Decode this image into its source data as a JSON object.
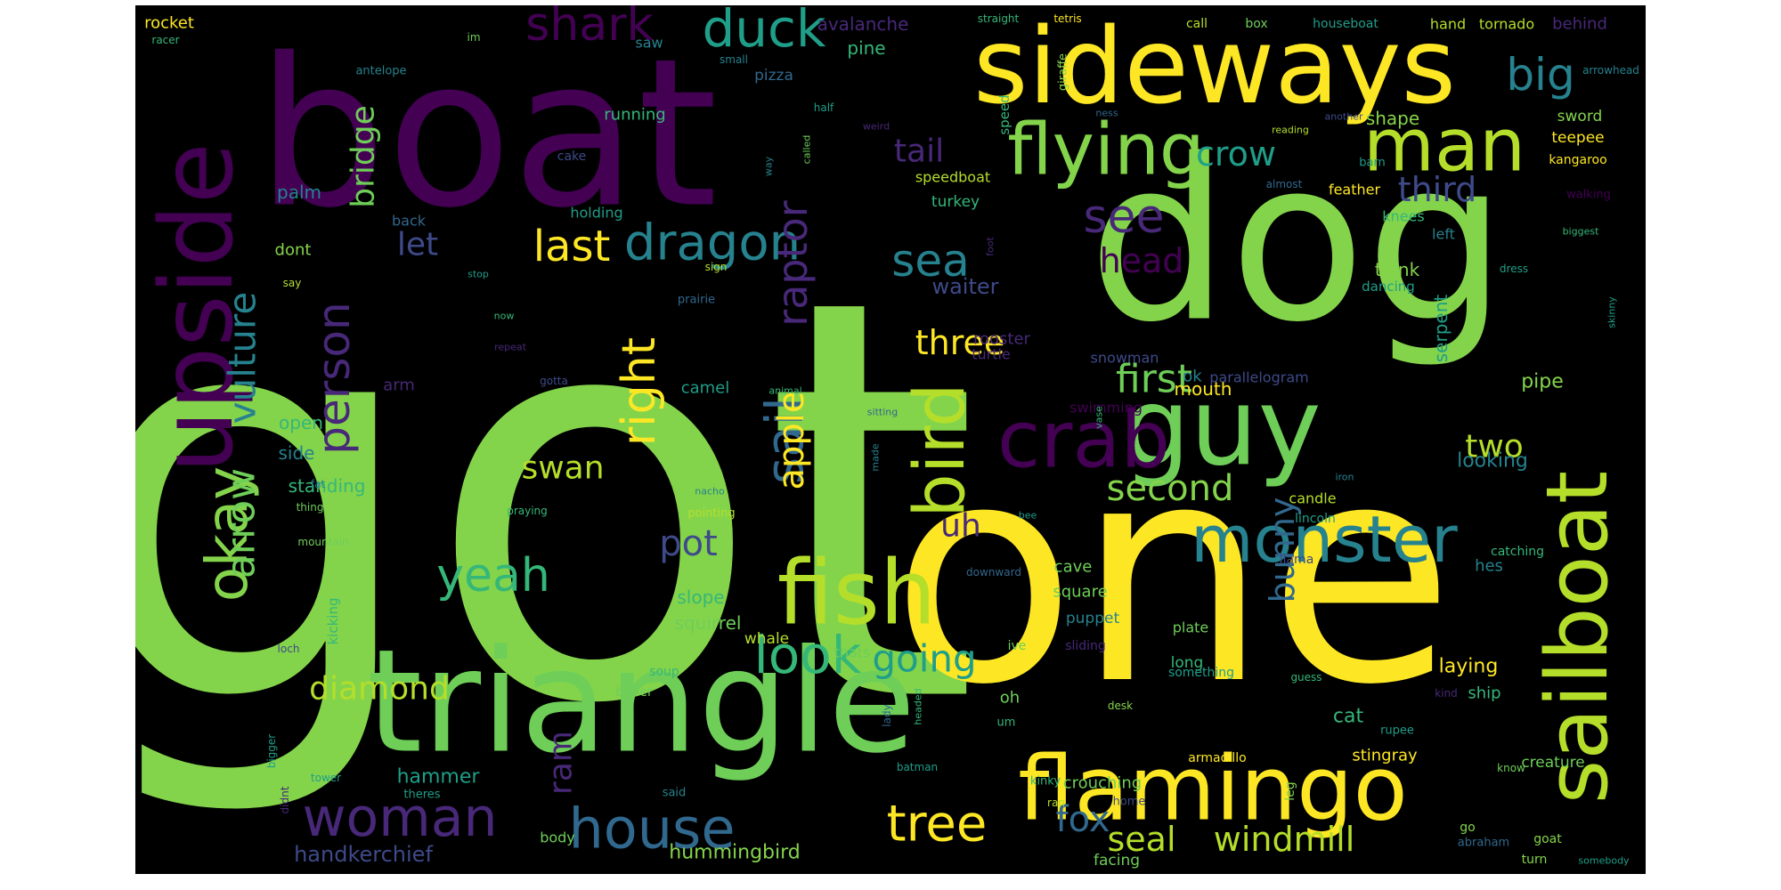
{
  "palette": {
    "background": "#000000",
    "frame": "#ffffff",
    "colors": [
      "#440154",
      "#482878",
      "#3e4a89",
      "#31688e",
      "#26828e",
      "#1f9e89",
      "#35b779",
      "#6ece58",
      "#84d44b",
      "#b5de2b",
      "#fde725"
    ]
  },
  "words": [
    "got",
    "one",
    "dog",
    "boat",
    "triangle",
    "sideways",
    "upside",
    "guy",
    "flamingo",
    "fish",
    "sailboat",
    "crab",
    "flying",
    "man",
    "monster",
    "bird",
    "okay",
    "dragon",
    "house",
    "woman",
    "look",
    "yeah",
    "sail",
    "right",
    "tree",
    "seal",
    "windmill",
    "big",
    "duck",
    "shark",
    "see",
    "sea",
    "first",
    "second",
    "last",
    "going",
    "pot",
    "person",
    "bridge",
    "raptor",
    "apple",
    "diamond",
    "bunny",
    "fox",
    "arrow",
    "vulture",
    "head",
    "third",
    "crow",
    "tail",
    "let",
    "three",
    "two",
    "swan",
    "ram",
    "uh",
    "handkerchief",
    "hummingbird",
    "waiter",
    "cat",
    "laying",
    "looking",
    "hammer",
    "rocket",
    "avalanche",
    "pine",
    "pizza",
    "saw",
    "running",
    "shape",
    "sword",
    "teepee",
    "kangaroo",
    "feather",
    "knees",
    "think",
    "dancing",
    "serpent",
    "pipe",
    "mouth",
    "rooster",
    "snowman",
    "parallelogram",
    "ok",
    "swimming",
    "turtle",
    "camel",
    "arm",
    "open",
    "side",
    "standing",
    "palm",
    "dont",
    "holding",
    "back",
    "turkey",
    "speedboat",
    "speed",
    "called",
    "way",
    "foot",
    "walking",
    "left",
    "biggest",
    "almost",
    "barn",
    "reading",
    "another",
    "ness",
    "giraffe",
    "straight",
    "tetris",
    "call",
    "box",
    "houseboat",
    "hand",
    "tornado",
    "behind",
    "arrowhead",
    "racer",
    "im",
    "small",
    "antelope",
    "half",
    "weird",
    "cake",
    "stop",
    "sign",
    "prairie",
    "say",
    "now",
    "repeat",
    "gotta",
    "animal",
    "sitting",
    "fat",
    "thing",
    "praying",
    "nacho",
    "pointing",
    "mountain",
    "bee",
    "vase",
    "made",
    "iron",
    "candle",
    "lincoln",
    "llama",
    "hes",
    "cave",
    "square",
    "puppet",
    "slope",
    "squirrel",
    "whale",
    "sliding",
    "plate",
    "long",
    "something",
    "guess",
    "kicking",
    "thats",
    "ive",
    "desk",
    "lady",
    "headed",
    "loch",
    "soup",
    "butler",
    "oh",
    "um",
    "ship",
    "kind",
    "rupee",
    "stingray",
    "armadillo",
    "creature",
    "know",
    "batman",
    "bigger",
    "tower",
    "didnt",
    "theres",
    "body",
    "crouching",
    "kinky",
    "home",
    "ran",
    "leg",
    "facing",
    "said",
    "abraham",
    "goat",
    "go",
    "turn",
    "somebody",
    "downward",
    "skinny",
    "dress",
    "catching"
  ]
}
